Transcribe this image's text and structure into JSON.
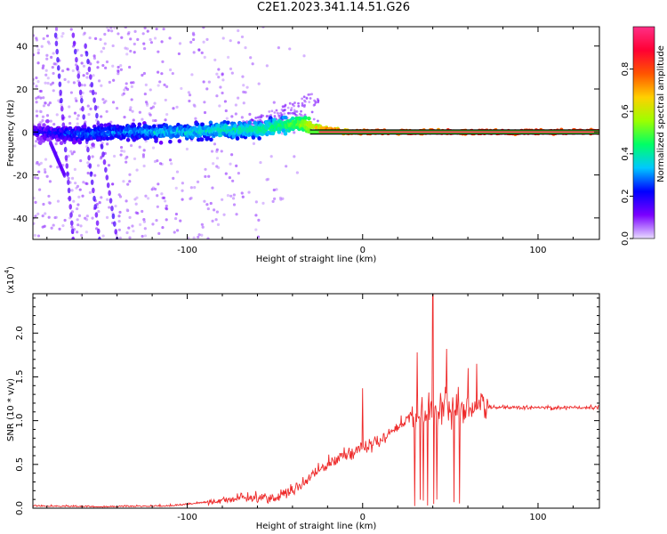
{
  "title": "C2E1.2023.341.14.51.G26",
  "chart_data": [
    {
      "type": "scatter",
      "xlabel": "Height of straight line (km)",
      "ylabel": "Frequency (Hz)",
      "xlim": [
        -188,
        135
      ],
      "ylim": [
        -50,
        49
      ],
      "xticks": [
        "-100",
        "0",
        "100"
      ],
      "xtick_values": [
        -100,
        0,
        100
      ],
      "yticks": [
        "-40",
        "-20",
        "0",
        "20",
        "40"
      ],
      "ytick_values": [
        -40,
        -20,
        0,
        20,
        40
      ],
      "colorbar": {
        "label": "Normalized spectral amplitude",
        "range": [
          0,
          1
        ],
        "ticks": [
          "0.0",
          "0.2",
          "0.4",
          "0.6",
          "0.8"
        ],
        "tick_values": [
          0,
          0.2,
          0.4,
          0.6,
          0.8
        ],
        "colors": [
          "#e8dcff",
          "#7a00ff",
          "#0000ff",
          "#00c8ff",
          "#00ff66",
          "#9cff00",
          "#ffd000",
          "#ff5500",
          "#ff0033",
          "#ff2f86"
        ]
      },
      "ridge": [
        {
          "x": -185,
          "f": 0,
          "amp": 0.2
        },
        {
          "x": -160,
          "f": -1,
          "amp": 0.28
        },
        {
          "x": -140,
          "f": 0,
          "amp": 0.3
        },
        {
          "x": -120,
          "f": 0,
          "amp": 0.33
        },
        {
          "x": -100,
          "f": 0,
          "amp": 0.36
        },
        {
          "x": -80,
          "f": 1,
          "amp": 0.4
        },
        {
          "x": -60,
          "f": 1,
          "amp": 0.42
        },
        {
          "x": -45,
          "f": 3,
          "amp": 0.46
        },
        {
          "x": -35,
          "f": 4,
          "amp": 0.55
        },
        {
          "x": -25,
          "f": 2,
          "amp": 0.7
        },
        {
          "x": -10,
          "f": 0,
          "amp": 0.85
        },
        {
          "x": 0,
          "f": 0,
          "amp": 0.9
        },
        {
          "x": 40,
          "f": 0,
          "amp": 0.92
        },
        {
          "x": 80,
          "f": 0,
          "amp": 0.95
        },
        {
          "x": 135,
          "f": 0,
          "amp": 0.95
        }
      ]
    },
    {
      "type": "line",
      "xlabel": "Height of straight line (km)",
      "ylabel": "SNR (10 * v/v)",
      "yscale_label": "(x10",
      "yscale_exp": "4",
      "yscale_close": ")",
      "xlim": [
        -188,
        135
      ],
      "ylim": [
        0,
        2.45
      ],
      "xticks": [
        "-100",
        "0",
        "100"
      ],
      "xtick_values": [
        -100,
        0,
        100
      ],
      "yticks": [
        "0.0",
        "0.5",
        "1.0",
        "1.5",
        "2.0"
      ],
      "ytick_values": [
        0,
        0.5,
        1.0,
        1.5,
        2.0
      ],
      "color": "#ee2a2a",
      "trend": [
        {
          "x": -188,
          "y": 0.02
        },
        {
          "x": -150,
          "y": 0.01
        },
        {
          "x": -110,
          "y": 0.02
        },
        {
          "x": -90,
          "y": 0.06
        },
        {
          "x": -70,
          "y": 0.12
        },
        {
          "x": -50,
          "y": 0.12
        },
        {
          "x": -40,
          "y": 0.2
        },
        {
          "x": -30,
          "y": 0.35
        },
        {
          "x": -20,
          "y": 0.5
        },
        {
          "x": -10,
          "y": 0.62
        },
        {
          "x": 0,
          "y": 0.68
        },
        {
          "x": 10,
          "y": 0.78
        },
        {
          "x": 20,
          "y": 0.92
        },
        {
          "x": 28,
          "y": 1.05
        },
        {
          "x": 35,
          "y": 1.1
        },
        {
          "x": 60,
          "y": 1.15
        },
        {
          "x": 80,
          "y": 1.15
        },
        {
          "x": 110,
          "y": 1.15
        },
        {
          "x": 135,
          "y": 1.15
        }
      ],
      "peaks": [
        {
          "x": 0,
          "y": 1.37
        },
        {
          "x": 31,
          "y": 1.78
        },
        {
          "x": 40,
          "y": 2.45
        },
        {
          "x": 48,
          "y": 1.82
        },
        {
          "x": 60,
          "y": 1.6
        },
        {
          "x": 65,
          "y": 1.65
        }
      ]
    }
  ]
}
